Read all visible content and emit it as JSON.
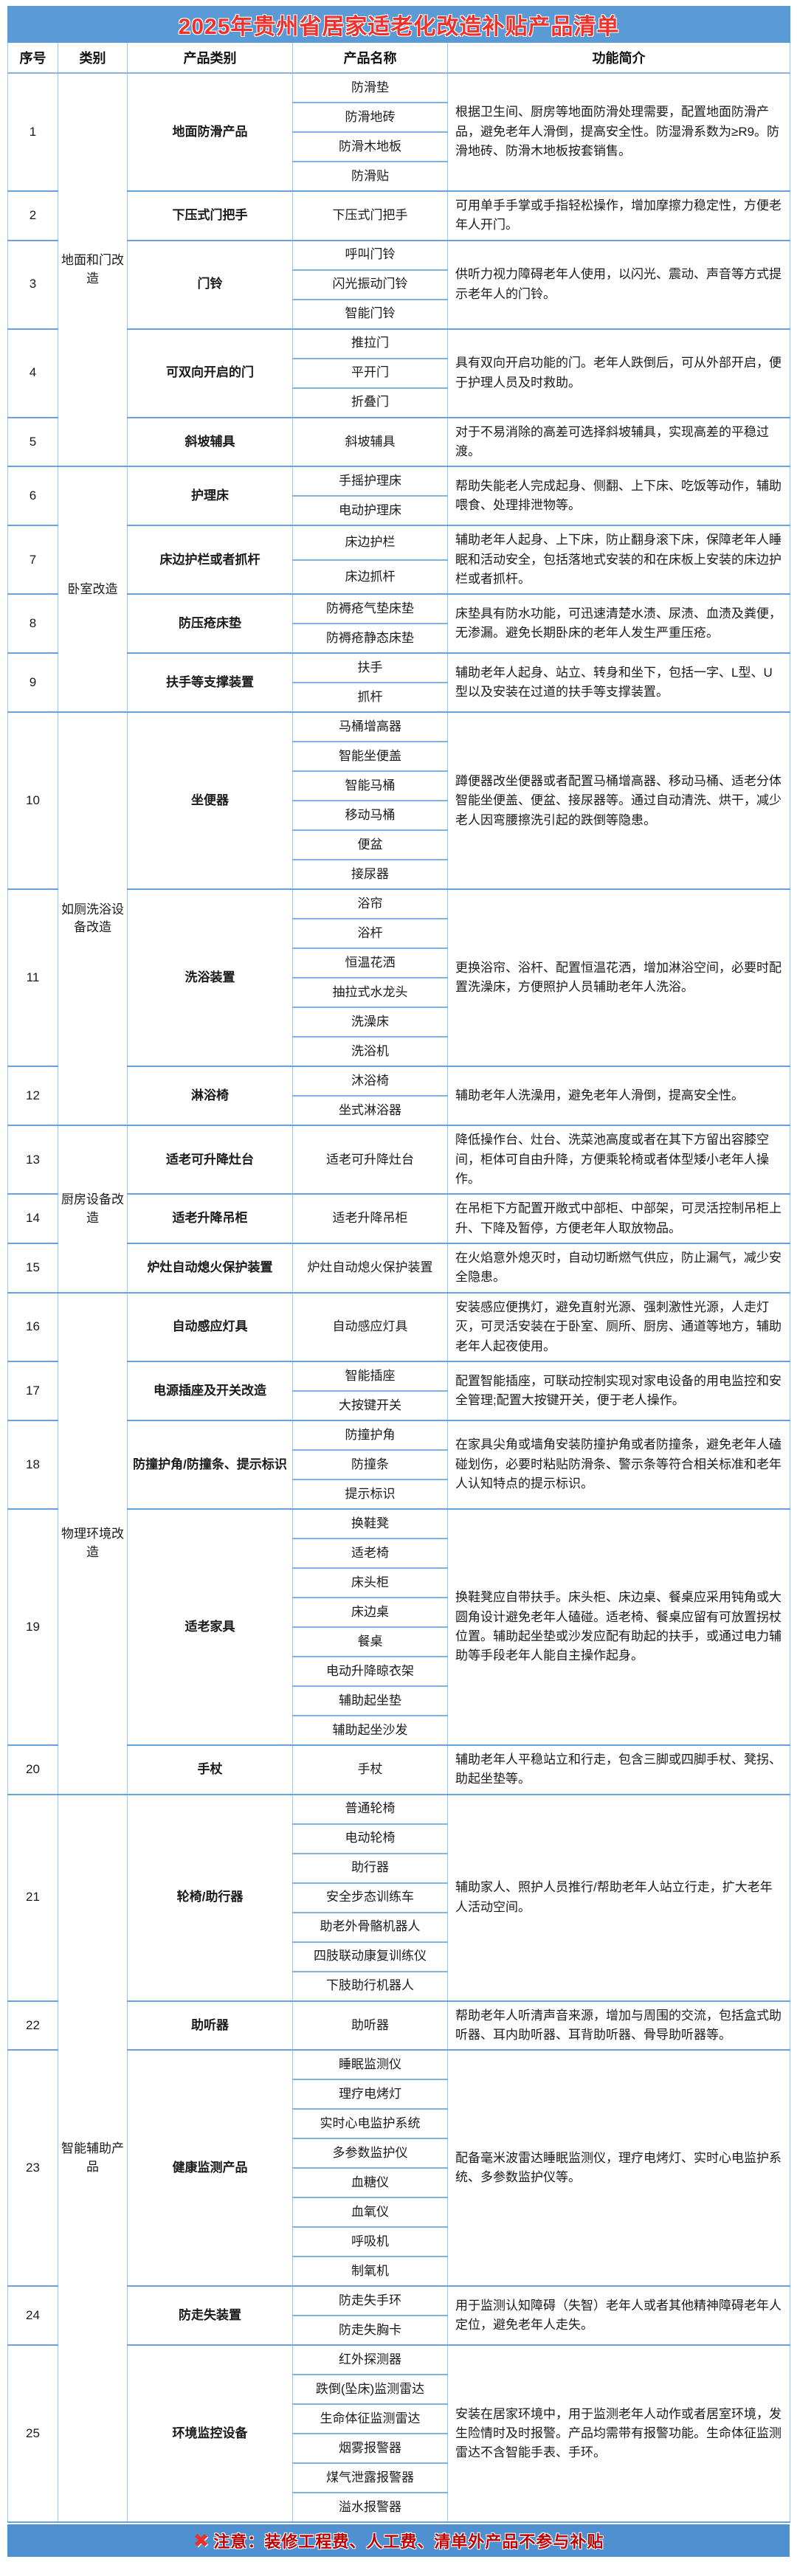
{
  "title": "2025年贵州省居家适老化改造补贴产品清单",
  "columns": [
    "序号",
    "类别",
    "产品类别",
    "产品名称",
    "功能简介"
  ],
  "categories": [
    {
      "label": "地面和门改造",
      "from": 1,
      "to": 5
    },
    {
      "label": "卧室改造",
      "from": 6,
      "to": 9
    },
    {
      "label": "如厕洗浴设备改造",
      "from": 10,
      "to": 12
    },
    {
      "label": "厨房设备改造",
      "from": 13,
      "to": 15
    },
    {
      "label": "物理环境改造",
      "from": 16,
      "to": 20
    },
    {
      "label": "智能辅助产品",
      "from": 21,
      "to": 25
    }
  ],
  "rows": [
    {
      "index": "1",
      "product_category": "地面防滑产品",
      "products": [
        "防滑垫",
        "防滑地砖",
        "防滑木地板",
        "防滑贴"
      ],
      "description": "根据卫生间、厨房等地面防滑处理需要，配置地面防滑产品，避免老年人滑倒，提高安全性。防湿滑系数为≥R9。防滑地砖、防滑木地板按套销售。"
    },
    {
      "index": "2",
      "product_category": "下压式门把手",
      "products": [
        "下压式门把手"
      ],
      "description": "可用单手手掌或手指轻松操作，增加摩擦力稳定性，方便老年人开门。"
    },
    {
      "index": "3",
      "product_category": "门铃",
      "products": [
        "呼叫门铃",
        "闪光振动门铃",
        "智能门铃"
      ],
      "description": "供听力视力障碍老年人使用，以闪光、震动、声音等方式提示老年人的门铃。"
    },
    {
      "index": "4",
      "product_category": "可双向开启的门",
      "products": [
        "推拉门",
        "平开门",
        "折叠门"
      ],
      "description": "具有双向开启功能的门。老年人跌倒后，可从外部开启，便于护理人员及时救助。"
    },
    {
      "index": "5",
      "product_category": "斜坡辅具",
      "products": [
        "斜坡辅具"
      ],
      "description": "对于不易消除的高差可选择斜坡辅具，实现高差的平稳过渡。"
    },
    {
      "index": "6",
      "product_category": "护理床",
      "products": [
        "手摇护理床",
        "电动护理床"
      ],
      "description": "帮助失能老人完成起身、侧翻、上下床、吃饭等动作，辅助喂食、处理排泄物等。"
    },
    {
      "index": "7",
      "product_category": "床边护栏或者抓杆",
      "products": [
        "床边护栏",
        "床边抓杆"
      ],
      "description": "辅助老年人起身、上下床，防止翻身滚下床，保障老年人睡眠和活动安全，包括落地式安装的和在床板上安装的床边护栏或者抓杆。"
    },
    {
      "index": "8",
      "product_category": "防压疮床垫",
      "products": [
        "防褥疮气垫床垫",
        "防褥疮静态床垫"
      ],
      "description": "床垫具有防水功能，可迅速清楚水渍、尿渍、血渍及粪便，无渗漏。避免长期卧床的老年人发生严重压疮。"
    },
    {
      "index": "9",
      "product_category": "扶手等支撑装置",
      "products": [
        "扶手",
        "抓杆"
      ],
      "description": "辅助老年人起身、站立、转身和坐下，包括一字、L型、U型以及安装在过道的扶手等支撑装置。"
    },
    {
      "index": "10",
      "product_category": "坐便器",
      "products": [
        "马桶增高器",
        "智能坐便盖",
        "智能马桶",
        "移动马桶",
        "便盆",
        "接尿器"
      ],
      "description": "蹲便器改坐便器或者配置马桶增高器、移动马桶、适老分体智能坐便盖、便盆、接尿器等。通过自动清洗、烘干，减少老人因弯腰擦洗引起的跌倒等隐患。"
    },
    {
      "index": "11",
      "product_category": "洗浴装置",
      "products": [
        "浴帘",
        "浴杆",
        "恒温花洒",
        "抽拉式水龙头",
        "洗澡床",
        "洗浴机"
      ],
      "description": "更换浴帘、浴杆、配置恒温花洒，增加淋浴空间，必要时配置洗澡床，方便照护人员辅助老年人洗浴。"
    },
    {
      "index": "12",
      "product_category": "淋浴椅",
      "products": [
        "沐浴椅",
        "坐式淋浴器"
      ],
      "description": "辅助老年人洗澡用，避免老年人滑倒，提高安全性。"
    },
    {
      "index": "13",
      "product_category": "适老可升降灶台",
      "products": [
        "适老可升降灶台"
      ],
      "description": "降低操作台、灶台、洗菜池高度或者在其下方留出容膝空间，柜体可自由升降，方便乘轮椅或者体型矮小老年人操作。"
    },
    {
      "index": "14",
      "product_category": "适老升降吊柜",
      "products": [
        "适老升降吊柜"
      ],
      "description": "在吊柜下方配置开敞式中部柜、中部架，可灵活控制吊柜上升、下降及暂停，方便老年人取放物品。"
    },
    {
      "index": "15",
      "product_category": "炉灶自动熄火保护装置",
      "products": [
        "炉灶自动熄火保护装置"
      ],
      "description": "在火焰意外熄灭时，自动切断燃气供应，防止漏气，减少安全隐患。"
    },
    {
      "index": "16",
      "product_category": "自动感应灯具",
      "products": [
        "自动感应灯具"
      ],
      "description": "安装感应便携灯，避免直射光源、强刺激性光源，人走灯灭，可灵活安装在于卧室、厕所、厨房、通道等地方，辅助老年人起夜使用。"
    },
    {
      "index": "17",
      "product_category": "电源插座及开关改造",
      "products": [
        "智能插座",
        "大按键开关"
      ],
      "description": "配置智能插座，可联动控制实现对家电设备的用电监控和安全管理;配置大按键开关，便于老人操作。"
    },
    {
      "index": "18",
      "product_category": "防撞护角/防撞条、提示标识",
      "products": [
        "防撞护角",
        "防撞条",
        "提示标识"
      ],
      "description": "在家具尖角或墙角安装防撞护角或者防撞条，避免老年人磕碰划伤，必要时粘贴防滑条、警示条等符合相关标准和老年人认知特点的提示标识。"
    },
    {
      "index": "19",
      "product_category": "适老家具",
      "products": [
        "换鞋凳",
        "适老椅",
        "床头柜",
        "床边桌",
        "餐桌",
        "电动升降晾衣架",
        "辅助起坐垫",
        "辅助起坐沙发"
      ],
      "description": "换鞋凳应自带扶手。床头柜、床边桌、餐桌应采用钝角或大圆角设计避免老年人磕碰。适老椅、餐桌应留有可放置拐杖位置。辅助起坐垫或沙发应配有助起的扶手，或通过电力辅助等手段老年人能自主操作起身。"
    },
    {
      "index": "20",
      "product_category": "手杖",
      "products": [
        "手杖"
      ],
      "description": "辅助老年人平稳站立和行走，包含三脚或四脚手杖、凳拐、助起坐垫等。"
    },
    {
      "index": "21",
      "product_category": "轮椅/助行器",
      "products": [
        "普通轮椅",
        "电动轮椅",
        "助行器",
        "安全步态训练车",
        "助老外骨骼机器人",
        "四肢联动康复训练仪",
        "下肢助行机器人"
      ],
      "description": "辅助家人、照护人员推行/帮助老年人站立行走，扩大老年人活动空间。"
    },
    {
      "index": "22",
      "product_category": "助听器",
      "products": [
        "助听器"
      ],
      "description": "帮助老年人听清声音来源，增加与周围的交流，包括盒式助听器、耳内助听器、耳背助听器、骨导助听器等。"
    },
    {
      "index": "23",
      "product_category": "健康监测产品",
      "products": [
        "睡眠监测仪",
        "理疗电烤灯",
        "实时心电监护系统",
        "多参数监护仪",
        "血糖仪",
        "血氧仪",
        "呼吸机",
        "制氧机"
      ],
      "description": "配备毫米波雷达睡眠监测仪，理疗电烤灯、实时心电监护系统、多参数监护仪等。"
    },
    {
      "index": "24",
      "product_category": "防走失装置",
      "products": [
        "防走失手环",
        "防走失胸卡"
      ],
      "description": "用于监测认知障碍（失智）老年人或者其他精神障碍老年人定位，避免老年人走失。"
    },
    {
      "index": "25",
      "product_category": "环境监控设备",
      "products": [
        "红外探测器",
        "跌倒(坠床)监测雷达",
        "生命体征监测雷达",
        "烟雾报警器",
        "煤气泄露报警器",
        "溢水报警器"
      ],
      "description": "安装在居家环境中，用于监测老年人动作或者居室环境，发生险情时及时报警。产品均需带有报警功能。生命体征监测雷达不含智能手表、手环。"
    }
  ],
  "footer": {
    "icon": "✖",
    "note": "注意：装修工程费、人工费、清单外产品不参与补贴"
  },
  "colors": {
    "title_bg": "#5B9BD5",
    "title_text": "#F0302A",
    "footer_bg": "#4F90D1",
    "footer_text": "#C00000",
    "border_light": "#AAC6E6",
    "border_strong": "#69A3DB",
    "subrow_border": "#7EB3E2"
  }
}
